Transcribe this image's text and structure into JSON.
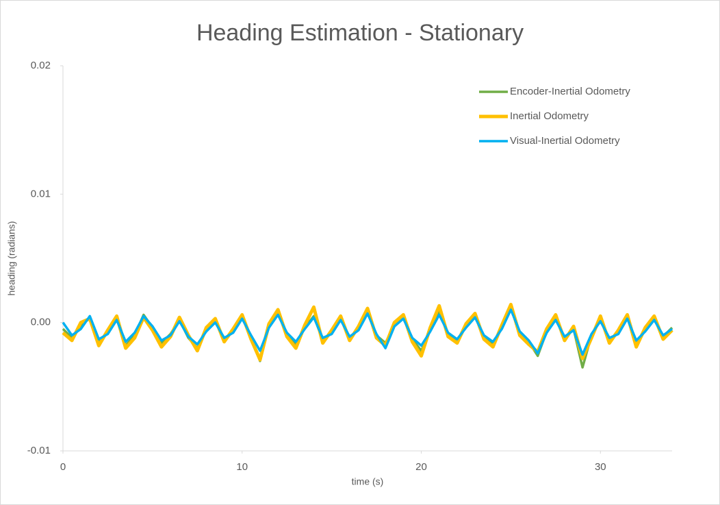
{
  "chart_data": {
    "type": "line",
    "title": "Heading Estimation - Stationary",
    "x_label": "time (s)",
    "y_label": "heading (radians)",
    "xlim": [
      0,
      34
    ],
    "xticks": [
      0,
      10,
      20,
      30
    ],
    "ylim": [
      -0.01,
      0.02
    ],
    "yticks": [
      -0.01,
      {
        "value": 0,
        "label": "0.00"
      },
      0.01,
      0.02
    ],
    "legend": "upper right",
    "x": [
      0,
      0.5,
      1,
      1.5,
      2,
      2.5,
      3,
      3.5,
      4,
      4.5,
      5,
      5.5,
      6,
      6.5,
      7,
      7.5,
      8,
      8.5,
      9,
      9.5,
      10,
      10.5,
      11,
      11.5,
      12,
      12.5,
      13,
      13.5,
      14,
      14.5,
      15,
      15.5,
      16,
      16.5,
      17,
      17.5,
      18,
      18.5,
      19,
      19.5,
      20,
      20.5,
      21,
      21.5,
      22,
      22.5,
      23,
      23.5,
      24,
      24.5,
      25,
      25.5,
      26,
      26.5,
      27,
      27.5,
      28,
      28.5,
      29,
      29.5,
      30,
      30.5,
      31,
      31.5,
      32,
      32.5,
      33,
      33.5,
      34
    ],
    "series": [
      {
        "name": "Encoder-Inertial Odometry",
        "color": "#70ad47",
        "values": [
          -0.0005,
          -0.0012,
          -0.0003,
          0.0004,
          -0.0015,
          -0.0008,
          0.0003,
          -0.0018,
          -0.001,
          0.0006,
          -0.0004,
          -0.0016,
          -0.0009,
          0.0002,
          -0.0012,
          -0.002,
          -0.0006,
          0.0001,
          -0.0013,
          -0.0007,
          0.0004,
          -0.0011,
          -0.003,
          -0.0003,
          0.0008,
          -0.0009,
          -0.0017,
          -0.0004,
          0.0005,
          -0.0014,
          -0.0008,
          0.0003,
          -0.0012,
          -0.0005,
          0.0009,
          -0.001,
          -0.0016,
          -0.0002,
          0.0004,
          -0.0013,
          -0.0022,
          -0.0006,
          0.0008,
          -0.0009,
          -0.0014,
          -0.0003,
          0.0005,
          -0.0011,
          -0.0017,
          -0.0004,
          0.0012,
          -0.0008,
          -0.0015,
          -0.0026,
          -0.0007,
          0.0003,
          -0.0012,
          -0.0005,
          -0.0035,
          -0.001,
          0.0002,
          -0.0014,
          -0.0008,
          0.0004,
          -0.0016,
          -0.0006,
          0.0003,
          -0.0011,
          -0.0004
        ]
      },
      {
        "name": "Inertial Odometry",
        "color": "#ffc000",
        "values": [
          -0.0008,
          -0.0014,
          0.0,
          0.0003,
          -0.0018,
          -0.0006,
          0.0005,
          -0.002,
          -0.0012,
          0.0004,
          -0.0006,
          -0.0019,
          -0.0011,
          0.0004,
          -0.001,
          -0.0022,
          -0.0004,
          0.0003,
          -0.0015,
          -0.0005,
          0.0006,
          -0.0013,
          -0.0029,
          -0.0001,
          0.001,
          -0.0011,
          -0.002,
          -0.0002,
          0.0012,
          -0.0016,
          -0.0006,
          0.0005,
          -0.0014,
          -0.0003,
          0.0011,
          -0.0012,
          -0.0018,
          0.0,
          0.0006,
          -0.0015,
          -0.0026,
          -0.0004,
          0.0013,
          -0.0011,
          -0.0016,
          -0.0001,
          0.0007,
          -0.0013,
          -0.0019,
          -0.0002,
          0.0014,
          -0.001,
          -0.0017,
          -0.0023,
          -0.0005,
          0.0006,
          -0.0014,
          -0.0003,
          -0.0028,
          -0.0012,
          0.0005,
          -0.0016,
          -0.0006,
          0.0006,
          -0.0019,
          -0.0004,
          0.0005,
          -0.0013,
          -0.0006
        ]
      },
      {
        "name": "Visual-Inertial Odometry",
        "color": "#00b0f0",
        "values": [
          0.0,
          -0.001,
          -0.0005,
          0.0005,
          -0.0013,
          -0.0009,
          0.0002,
          -0.0015,
          -0.0008,
          0.0005,
          -0.0003,
          -0.0014,
          -0.001,
          0.0001,
          -0.0011,
          -0.0017,
          -0.0007,
          0.0,
          -0.0012,
          -0.0008,
          0.0003,
          -0.001,
          -0.0022,
          -0.0004,
          0.0006,
          -0.0008,
          -0.0015,
          -0.0005,
          0.0004,
          -0.0012,
          -0.0009,
          0.0002,
          -0.0011,
          -0.0006,
          0.0007,
          -0.0009,
          -0.002,
          -0.0003,
          0.0003,
          -0.0012,
          -0.0018,
          -0.0007,
          0.0006,
          -0.0008,
          -0.0013,
          -0.0004,
          0.0004,
          -0.001,
          -0.0015,
          -0.0005,
          0.001,
          -0.0007,
          -0.0014,
          -0.0024,
          -0.0008,
          0.0002,
          -0.0011,
          -0.0006,
          -0.0025,
          -0.0009,
          0.0001,
          -0.0012,
          -0.0009,
          0.0003,
          -0.0014,
          -0.0007,
          0.0002,
          -0.001,
          -0.0005
        ]
      }
    ]
  }
}
